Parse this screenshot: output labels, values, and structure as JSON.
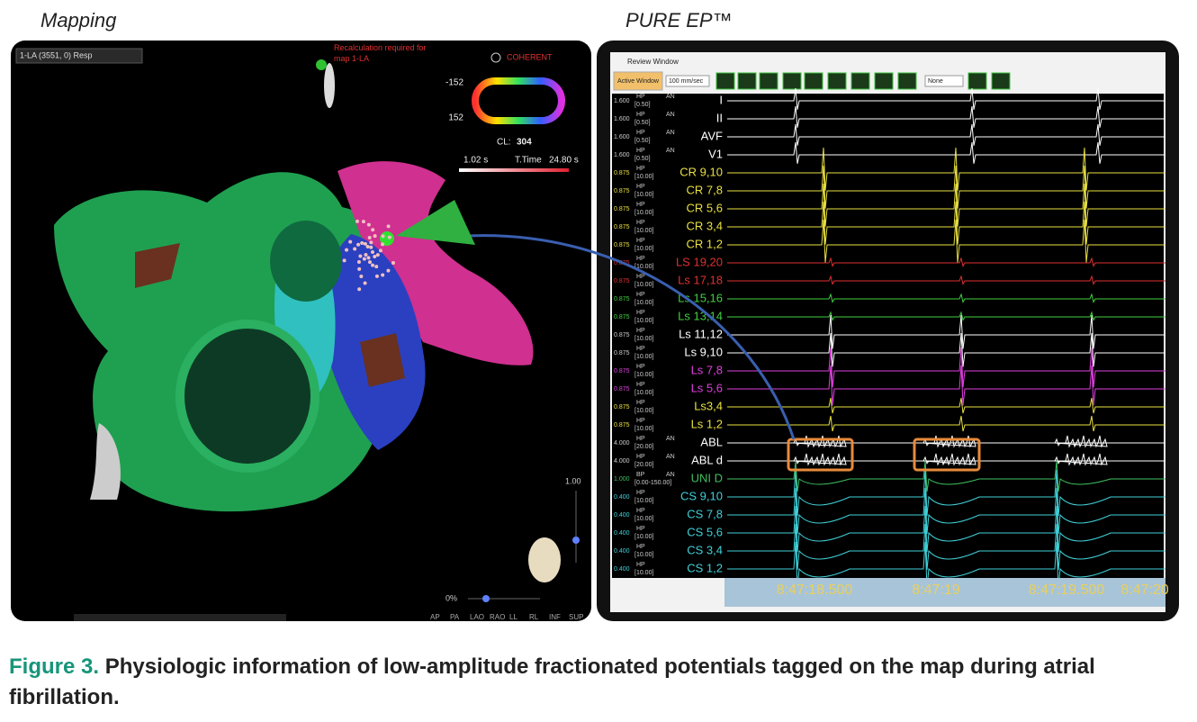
{
  "header": {
    "left_title": "Mapping",
    "right_title": "PURE EP™"
  },
  "mapping": {
    "map_selector": "1-LA (3551, 0) Resp",
    "warning": "Recalculation required for map 1-LA",
    "mode": "COHERENT",
    "scale_top": -152,
    "scale_bottom": 152,
    "cycle_length_label": "CL:",
    "cycle_length": 304,
    "time_min": "1.02 s",
    "time_label": "T.Time",
    "time_max": "24.80 s",
    "slider_max": "1.00",
    "opacity": "0%",
    "views": [
      "AP",
      "PA",
      "LAO",
      "RAO",
      "LL",
      "RL",
      "INF",
      "SUP"
    ]
  },
  "review": {
    "window_title": "Review Window",
    "active_button": "Active Window",
    "speed": "100 mm/sec",
    "filter_option": "None",
    "channels": [
      {
        "gain": "1.600",
        "filter": "HP",
        "range": "[0.50]",
        "an": "AN",
        "name": "I",
        "color": "#ffffff"
      },
      {
        "gain": "1.600",
        "filter": "HP",
        "range": "[0.50]",
        "an": "AN",
        "name": "II",
        "color": "#ffffff"
      },
      {
        "gain": "1.600",
        "filter": "HP",
        "range": "[0.50]",
        "an": "AN",
        "name": "AVF",
        "color": "#ffffff"
      },
      {
        "gain": "1.600",
        "filter": "HP",
        "range": "[0.50]",
        "an": "AN",
        "name": "V1",
        "color": "#ffffff"
      },
      {
        "gain": "0.875",
        "filter": "HP",
        "range": "[10.00]",
        "name": "CR 9,10",
        "color": "#e8e040"
      },
      {
        "gain": "0.875",
        "filter": "HP",
        "range": "[10.00]",
        "name": "CR 7,8",
        "color": "#e8e040"
      },
      {
        "gain": "0.875",
        "filter": "HP",
        "range": "[10.00]",
        "name": "CR 5,6",
        "color": "#e8e040"
      },
      {
        "gain": "0.875",
        "filter": "HP",
        "range": "[10.00]",
        "name": "CR 3,4",
        "color": "#e8e040"
      },
      {
        "gain": "0.875",
        "filter": "HP",
        "range": "[10.00]",
        "name": "CR 1,2",
        "color": "#e8e040"
      },
      {
        "gain": "0.875",
        "filter": "HP",
        "range": "[10.00]",
        "name": "LS 19,20",
        "color": "#e03030"
      },
      {
        "gain": "0.875",
        "filter": "HP",
        "range": "[10.00]",
        "name": "Ls 17,18",
        "color": "#e03030"
      },
      {
        "gain": "0.875",
        "filter": "HP",
        "range": "[10.00]",
        "name": "Ls 15,16",
        "color": "#40d040"
      },
      {
        "gain": "0.875",
        "filter": "HP",
        "range": "[10.00]",
        "name": "Ls 13,14",
        "color": "#40d040"
      },
      {
        "gain": "0.875",
        "filter": "HP",
        "range": "[10.00]",
        "name": "Ls 11,12",
        "color": "#ffffff"
      },
      {
        "gain": "0.875",
        "filter": "HP",
        "range": "[10.00]",
        "name": "Ls 9,10",
        "color": "#ffffff"
      },
      {
        "gain": "0.875",
        "filter": "HP",
        "range": "[10.00]",
        "name": "Ls 7,8",
        "color": "#e040e0"
      },
      {
        "gain": "0.875",
        "filter": "HP",
        "range": "[10.00]",
        "name": "Ls 5,6",
        "color": "#e040e0"
      },
      {
        "gain": "0.875",
        "filter": "HP",
        "range": "[10.00]",
        "name": "Ls3,4",
        "color": "#e8e040"
      },
      {
        "gain": "0.875",
        "filter": "HP",
        "range": "[10.00]",
        "name": "Ls 1,2",
        "color": "#e8e040"
      },
      {
        "gain": "4.000",
        "filter": "HP",
        "range": "[20.00]",
        "an": "AN",
        "name": "ABL",
        "color": "#ffffff"
      },
      {
        "gain": "4.000",
        "filter": "HP",
        "range": "[20.00]",
        "an": "AN",
        "name": "ABL d",
        "color": "#ffffff"
      },
      {
        "gain": "1.000",
        "filter": "BP",
        "range": "[0.00-150.00]",
        "an": "AN",
        "name": "UNI D",
        "color": "#40c060"
      },
      {
        "gain": "0.400",
        "filter": "HP",
        "range": "[10.00]",
        "name": "CS 9,10",
        "color": "#40d0d8"
      },
      {
        "gain": "0.400",
        "filter": "HP",
        "range": "[10.00]",
        "name": "CS 7,8",
        "color": "#40d0d8"
      },
      {
        "gain": "0.400",
        "filter": "HP",
        "range": "[10.00]",
        "name": "CS 5,6",
        "color": "#40d0d8"
      },
      {
        "gain": "0.400",
        "filter": "HP",
        "range": "[10.00]",
        "name": "CS 3,4",
        "color": "#40d0d8"
      },
      {
        "gain": "0.400",
        "filter": "HP",
        "range": "[10.00]",
        "name": "CS 1,2",
        "color": "#40d0d8"
      }
    ],
    "time_labels": [
      "8:47:18.500",
      "8:47:19",
      "8:47:19.500",
      "8:47:20"
    ]
  },
  "caption": {
    "label": "Figure 3.",
    "text": "Physiologic information of low-amplitude fractionated potentials tagged on the map during atrial fibrillation."
  }
}
